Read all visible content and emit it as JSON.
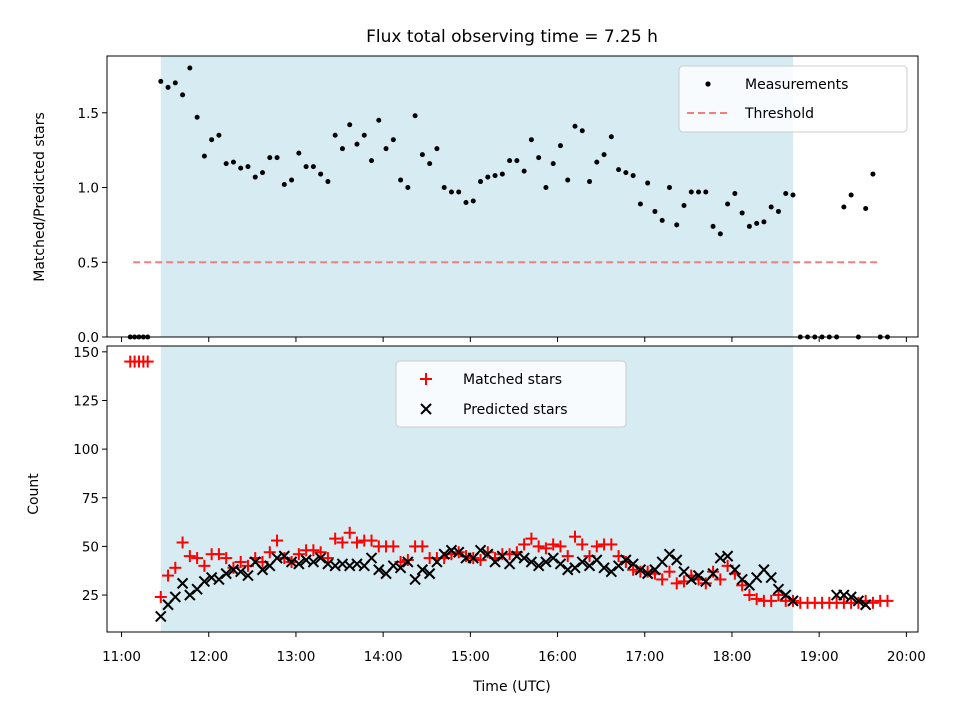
{
  "chart_data": [
    {
      "type": "scatter",
      "title": "Flux total observing time = 7.25 h",
      "xlabel": "",
      "ylabel": "Matched/Predicted stars",
      "xlim": [
        "10:50",
        "20:08"
      ],
      "ylim": [
        0,
        1.88
      ],
      "yticks": [
        "0.0",
        "0.5",
        "1.0",
        "1.5"
      ],
      "xticks": [
        "11:00",
        "12:00",
        "13:00",
        "14:00",
        "15:00",
        "16:00",
        "17:00",
        "18:00",
        "19:00",
        "20:00"
      ],
      "shaded_span": {
        "start": "11:27",
        "end": "18:42",
        "color": "#add8e6"
      },
      "legend": {
        "location": "upper right"
      },
      "series": [
        {
          "name": "Measurements",
          "style": "black dots",
          "x": [
            "11:06",
            "11:09",
            "11:12",
            "11:15",
            "11:18",
            "11:27",
            "11:32",
            "11:37",
            "11:42",
            "11:47",
            "11:52",
            "11:57",
            "12:02",
            "12:07",
            "12:12",
            "12:17",
            "12:22",
            "12:27",
            "12:32",
            "12:37",
            "12:42",
            "12:47",
            "12:52",
            "12:57",
            "13:02",
            "13:07",
            "13:12",
            "13:17",
            "13:22",
            "13:27",
            "13:32",
            "13:37",
            "13:42",
            "13:47",
            "13:52",
            "13:57",
            "14:02",
            "14:07",
            "14:12",
            "14:17",
            "14:22",
            "14:27",
            "14:32",
            "14:37",
            "14:42",
            "14:47",
            "14:52",
            "14:57",
            "15:02",
            "15:07",
            "15:12",
            "15:17",
            "15:22",
            "15:27",
            "15:32",
            "15:37",
            "15:42",
            "15:47",
            "15:52",
            "15:57",
            "16:02",
            "16:07",
            "16:12",
            "16:17",
            "16:22",
            "16:27",
            "16:32",
            "16:37",
            "16:42",
            "16:47",
            "16:52",
            "16:57",
            "17:02",
            "17:07",
            "17:12",
            "17:17",
            "17:22",
            "17:27",
            "17:32",
            "17:37",
            "17:42",
            "17:47",
            "17:52",
            "17:57",
            "18:02",
            "18:07",
            "18:12",
            "18:17",
            "18:22",
            "18:27",
            "18:32",
            "18:37",
            "18:42",
            "18:47",
            "18:52",
            "18:57",
            "19:02",
            "19:07",
            "19:12",
            "19:17",
            "19:22",
            "19:27",
            "19:32",
            "19:37",
            "19:42",
            "19:47"
          ],
          "y": [
            0.0,
            0.0,
            0.0,
            0.0,
            0.0,
            1.71,
            1.67,
            1.7,
            1.62,
            1.8,
            1.47,
            1.21,
            1.32,
            1.35,
            1.16,
            1.17,
            1.13,
            1.14,
            1.07,
            1.1,
            1.2,
            1.2,
            1.02,
            1.05,
            1.23,
            1.14,
            1.14,
            1.09,
            1.04,
            1.35,
            1.26,
            1.42,
            1.29,
            1.35,
            1.18,
            1.45,
            1.26,
            1.32,
            1.05,
            1.0,
            1.48,
            1.22,
            1.16,
            1.26,
            1.0,
            0.97,
            0.97,
            0.9,
            0.91,
            1.04,
            1.07,
            1.08,
            1.09,
            1.18,
            1.18,
            1.11,
            1.32,
            1.2,
            1.0,
            1.16,
            1.28,
            1.05,
            1.41,
            1.38,
            1.04,
            1.17,
            1.22,
            1.34,
            1.12,
            1.1,
            1.08,
            0.89,
            1.03,
            0.84,
            0.78,
            1.0,
            0.75,
            0.88,
            0.97,
            0.97,
            0.97,
            0.74,
            0.69,
            0.89,
            0.96,
            0.83,
            0.74,
            0.76,
            0.77,
            0.87,
            0.84,
            0.96,
            0.95,
            0.0,
            0.0,
            0.0,
            0.0,
            0.0,
            0.0,
            0.87,
            0.95,
            0.0,
            0.86,
            1.09,
            0.0,
            0.0
          ]
        },
        {
          "name": "Threshold",
          "style": "dashed red line",
          "x": [
            "11:08",
            "19:42"
          ],
          "y": [
            0.5,
            0.5
          ]
        }
      ]
    },
    {
      "type": "scatter",
      "title": "",
      "xlabel": "Time (UTC)",
      "ylabel": "Count",
      "xlim": [
        "10:50",
        "20:08"
      ],
      "ylim": [
        6,
        153
      ],
      "yticks": [
        "25",
        "50",
        "75",
        "100",
        "125",
        "150"
      ],
      "xticks": [
        "11:00",
        "12:00",
        "13:00",
        "14:00",
        "15:00",
        "16:00",
        "17:00",
        "18:00",
        "19:00",
        "20:00"
      ],
      "shaded_span": {
        "start": "11:27",
        "end": "18:42",
        "color": "#add8e6"
      },
      "legend": {
        "location": "upper center"
      },
      "series": [
        {
          "name": "Matched stars",
          "style": "red plus",
          "x": [
            "11:06",
            "11:09",
            "11:12",
            "11:15",
            "11:18",
            "11:27",
            "11:32",
            "11:37",
            "11:42",
            "11:47",
            "11:52",
            "11:57",
            "12:02",
            "12:07",
            "12:12",
            "12:17",
            "12:22",
            "12:27",
            "12:32",
            "12:37",
            "12:42",
            "12:47",
            "12:52",
            "12:57",
            "13:02",
            "13:07",
            "13:12",
            "13:17",
            "13:22",
            "13:27",
            "13:32",
            "13:37",
            "13:42",
            "13:47",
            "13:52",
            "13:57",
            "14:02",
            "14:07",
            "14:12",
            "14:17",
            "14:22",
            "14:27",
            "14:32",
            "14:37",
            "14:42",
            "14:47",
            "14:52",
            "14:57",
            "15:02",
            "15:07",
            "15:12",
            "15:17",
            "15:22",
            "15:27",
            "15:32",
            "15:37",
            "15:42",
            "15:47",
            "15:52",
            "15:57",
            "16:02",
            "16:07",
            "16:12",
            "16:17",
            "16:22",
            "16:27",
            "16:32",
            "16:37",
            "16:42",
            "16:47",
            "16:52",
            "16:57",
            "17:02",
            "17:07",
            "17:12",
            "17:17",
            "17:22",
            "17:27",
            "17:32",
            "17:37",
            "17:42",
            "17:47",
            "17:52",
            "17:57",
            "18:02",
            "18:07",
            "18:12",
            "18:17",
            "18:22",
            "18:27",
            "18:32",
            "18:37",
            "18:42",
            "18:47",
            "18:52",
            "18:57",
            "19:02",
            "19:07",
            "19:12",
            "19:17",
            "19:22",
            "19:27",
            "19:32",
            "19:37",
            "19:42",
            "19:47"
          ],
          "y": [
            145,
            145,
            145,
            145,
            145,
            24,
            35,
            39,
            52,
            45,
            44,
            40,
            46,
            46,
            44,
            39,
            42,
            40,
            44,
            42,
            47,
            53,
            44,
            42,
            46,
            48,
            48,
            47,
            44,
            54,
            52,
            57,
            52,
            53,
            53,
            50,
            50,
            50,
            42,
            43,
            50,
            50,
            44,
            44,
            44,
            46,
            47,
            45,
            44,
            43,
            47,
            44,
            46,
            46,
            47,
            51,
            54,
            50,
            49,
            51,
            50,
            45,
            55,
            51,
            45,
            50,
            51,
            51,
            45,
            42,
            38,
            37,
            37,
            36,
            33,
            37,
            31,
            32,
            35,
            33,
            31,
            37,
            33,
            40,
            36,
            30,
            25,
            23,
            22,
            22,
            25,
            22,
            22,
            21,
            21,
            21,
            21,
            21,
            21,
            21,
            21,
            21,
            22,
            21,
            22,
            22
          ]
        },
        {
          "name": "Predicted stars",
          "style": "black x",
          "x": [
            "11:27",
            "11:32",
            "11:37",
            "11:42",
            "11:47",
            "11:52",
            "11:57",
            "12:02",
            "12:07",
            "12:12",
            "12:17",
            "12:22",
            "12:27",
            "12:32",
            "12:37",
            "12:42",
            "12:47",
            "12:52",
            "12:57",
            "13:02",
            "13:07",
            "13:12",
            "13:17",
            "13:22",
            "13:27",
            "13:32",
            "13:37",
            "13:42",
            "13:47",
            "13:52",
            "13:57",
            "14:02",
            "14:07",
            "14:12",
            "14:17",
            "14:22",
            "14:27",
            "14:32",
            "14:37",
            "14:42",
            "14:47",
            "14:52",
            "14:57",
            "15:02",
            "15:07",
            "15:12",
            "15:17",
            "15:22",
            "15:27",
            "15:32",
            "15:37",
            "15:42",
            "15:47",
            "15:52",
            "15:57",
            "16:02",
            "16:07",
            "16:12",
            "16:17",
            "16:22",
            "16:27",
            "16:32",
            "16:37",
            "16:42",
            "16:47",
            "16:52",
            "16:57",
            "17:02",
            "17:07",
            "17:12",
            "17:17",
            "17:22",
            "17:27",
            "17:32",
            "17:37",
            "17:42",
            "17:47",
            "17:52",
            "17:57",
            "18:02",
            "18:07",
            "18:12",
            "18:17",
            "18:22",
            "18:27",
            "18:32",
            "18:37",
            "18:42",
            "19:12",
            "19:17",
            "19:22",
            "19:27",
            "19:32"
          ],
          "y": [
            14,
            20,
            24,
            31,
            25,
            28,
            32,
            34,
            33,
            36,
            38,
            37,
            35,
            42,
            38,
            40,
            44,
            45,
            42,
            41,
            43,
            42,
            44,
            41,
            40,
            41,
            40,
            41,
            40,
            44,
            38,
            36,
            40,
            39,
            42,
            33,
            38,
            36,
            42,
            46,
            48,
            47,
            44,
            44,
            48,
            46,
            42,
            45,
            41,
            45,
            44,
            42,
            40,
            42,
            44,
            41,
            38,
            39,
            42,
            40,
            43,
            39,
            37,
            40,
            43,
            41,
            38,
            36,
            38,
            42,
            46,
            43,
            37,
            33,
            35,
            32,
            36,
            44,
            45,
            38,
            33,
            30,
            34,
            38,
            34,
            28,
            25,
            22,
            25,
            25,
            24,
            22,
            20
          ]
        }
      ]
    }
  ]
}
